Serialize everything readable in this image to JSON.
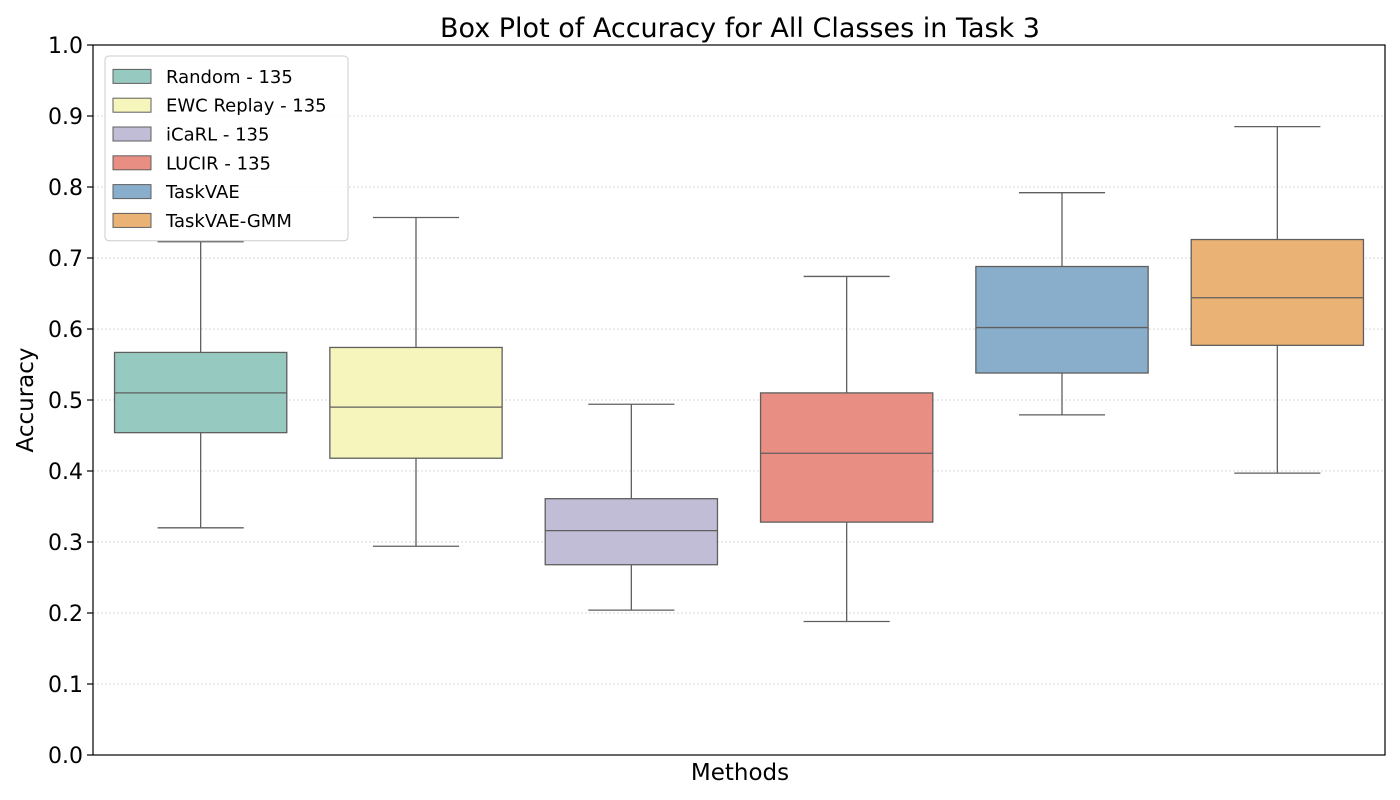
{
  "chart_data": {
    "type": "box",
    "title": "Box Plot of Accuracy for All Classes in Task 3",
    "xlabel": "Methods",
    "ylabel": "Accuracy",
    "ylim": [
      0,
      1.0
    ],
    "yticks": [
      "0.0",
      "0.1",
      "0.2",
      "0.3",
      "0.4",
      "0.5",
      "0.6",
      "0.7",
      "0.8",
      "0.9",
      "1.0"
    ],
    "grid": "horizontal dotted",
    "legend_position": "top-left",
    "series": [
      {
        "name": "Random - 135",
        "color": "#96cac0",
        "whisker_low": 0.32,
        "q1": 0.454,
        "median": 0.51,
        "q3": 0.567,
        "whisker_high": 0.723
      },
      {
        "name": "EWC Replay - 135",
        "color": "#f6f6bc",
        "whisker_low": 0.294,
        "q1": 0.418,
        "median": 0.49,
        "q3": 0.574,
        "whisker_high": 0.757
      },
      {
        "name": "iCaRL - 135",
        "color": "#c1bdd6",
        "whisker_low": 0.204,
        "q1": 0.268,
        "median": 0.316,
        "q3": 0.361,
        "whisker_high": 0.494
      },
      {
        "name": "LUCIR - 135",
        "color": "#e98e82",
        "whisker_low": 0.188,
        "q1": 0.328,
        "median": 0.425,
        "q3": 0.51,
        "whisker_high": 0.674
      },
      {
        "name": "TaskVAE",
        "color": "#89aecb",
        "whisker_low": 0.479,
        "q1": 0.538,
        "median": 0.602,
        "q3": 0.688,
        "whisker_high": 0.792
      },
      {
        "name": "TaskVAE-GMM",
        "color": "#eab274",
        "whisker_low": 0.397,
        "q1": 0.577,
        "median": 0.644,
        "q3": 0.726,
        "whisker_high": 0.885
      }
    ]
  }
}
